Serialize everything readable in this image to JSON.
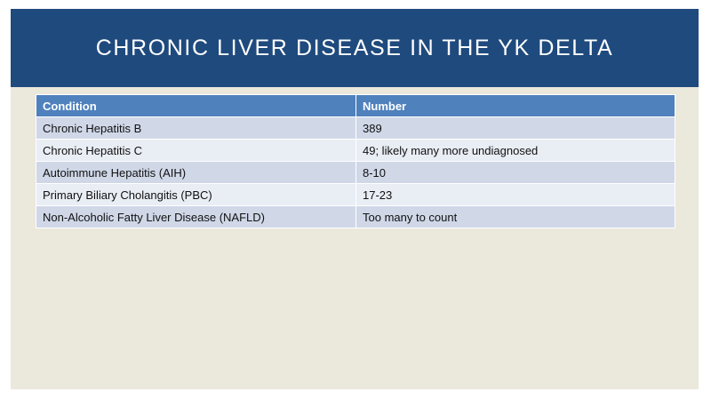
{
  "slide": {
    "title": "Chronic Liver Disease in the YK Delta"
  },
  "table": {
    "headers": [
      "Condition",
      "Number"
    ],
    "rows": [
      [
        "Chronic Hepatitis B",
        "389"
      ],
      [
        "Chronic Hepatitis C",
        "49; likely many more undiagnosed"
      ],
      [
        "Autoimmune Hepatitis (AIH)",
        "8-10"
      ],
      [
        "Primary Biliary Cholangitis (PBC)",
        "17-23"
      ],
      [
        "Non-Alcoholic Fatty Liver Disease (NAFLD)",
        "Too many to count"
      ]
    ]
  },
  "colors": {
    "title_bar": "#1f4a7d",
    "header_row": "#4f81bd",
    "row_odd": "#d0d8e8",
    "row_even": "#e9edf4",
    "slide_background": "#ebe8dc"
  }
}
